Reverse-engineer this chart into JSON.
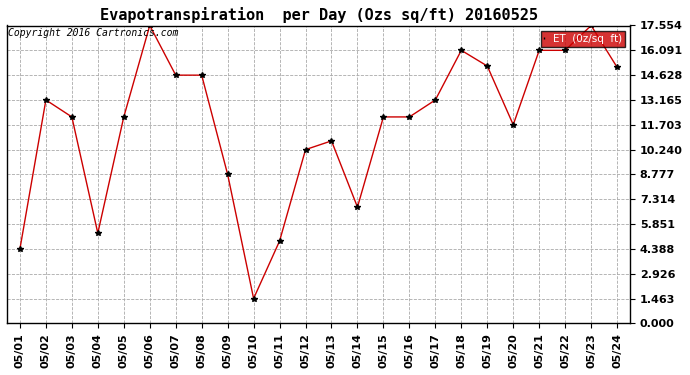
{
  "title": "Evapotranspiration  per Day (Ozs sq/ft) 20160525",
  "copyright": "Copyright 2016 Cartronics.com",
  "x_labels": [
    "05/01",
    "05/02",
    "05/03",
    "05/04",
    "05/05",
    "05/06",
    "05/07",
    "05/08",
    "05/09",
    "05/10",
    "05/11",
    "05/12",
    "05/13",
    "05/14",
    "05/15",
    "05/16",
    "05/17",
    "05/18",
    "05/19",
    "05/20",
    "05/21",
    "05/22",
    "05/23",
    "05/24"
  ],
  "y_values": [
    4.388,
    13.165,
    12.165,
    5.314,
    12.165,
    17.554,
    14.628,
    14.628,
    8.777,
    1.463,
    4.851,
    10.24,
    10.753,
    6.851,
    12.165,
    12.165,
    13.165,
    16.091,
    15.165,
    11.703,
    16.091,
    16.091,
    17.554,
    15.091
  ],
  "ylim": [
    0.0,
    17.554
  ],
  "yticks": [
    0.0,
    1.463,
    2.926,
    4.388,
    5.851,
    7.314,
    8.777,
    10.24,
    11.703,
    13.165,
    14.628,
    16.091,
    17.554
  ],
  "line_color": "#cc0000",
  "marker_color": "#000000",
  "background_color": "#ffffff",
  "grid_color": "#aaaaaa",
  "legend_bg": "#cc0000",
  "legend_text_color": "#ffffff",
  "title_fontsize": 11,
  "copyright_fontsize": 7,
  "tick_fontsize": 8,
  "figwidth": 6.9,
  "figheight": 3.75,
  "dpi": 100
}
